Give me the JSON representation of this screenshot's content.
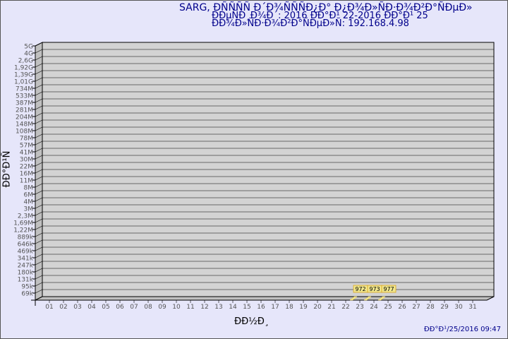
{
  "header": {
    "title": "SARG,  ÐÑÑÑÑ Ð´Ð¾ÑÑÑÐ¿Ð° Ð¿Ð¾Ð»ÑÐ·Ð¾Ð²Ð°ÑÐµÐ»",
    "period": "ÐÐµÑÐ¸Ð¾Ð´: 2016 ÐÐ°Ð¹ 22-2016 ÐÐ°Ð¹ 25",
    "user": "ÐÐ¾Ð»ÑÐ·Ð¾Ð²Ð°ÑÐµÐ»Ñ: 192.168.4.98"
  },
  "footer": {
    "generated": "ÐÐ°Ð¹/25/2016 09:47"
  },
  "colors": {
    "background": "#e6e6fa",
    "plot": "#d3d3d3",
    "bar": "#f0e68c",
    "text_title": "#00008b"
  },
  "chart_data": {
    "type": "bar",
    "xlabel": "ÐÐ½Ð¸",
    "ylabel": "ÐÐ°Ð¹Ñ",
    "y_scale": "log",
    "y_ticks": [
      "5G",
      "4G",
      "2,6G",
      "1,92G",
      "1,39G",
      "1,01G",
      "734M",
      "533M",
      "387M",
      "281M",
      "204M",
      "148M",
      "108M",
      "78M",
      "57M",
      "41M",
      "30M",
      "22M",
      "16M",
      "11M",
      "8M",
      "6M",
      "4M",
      "3M",
      "2,3M",
      "1,69M",
      "1,22M",
      "889k",
      "646k",
      "469k",
      "341k",
      "247k",
      "180k",
      "131k",
      "95k",
      "69k"
    ],
    "categories": [
      "01",
      "02",
      "03",
      "04",
      "05",
      "06",
      "07",
      "08",
      "09",
      "10",
      "11",
      "12",
      "13",
      "14",
      "15",
      "16",
      "17",
      "18",
      "19",
      "20",
      "21",
      "22",
      "23",
      "24",
      "25",
      "26",
      "27",
      "28",
      "29",
      "30",
      "31"
    ],
    "bars": [
      {
        "day": "23",
        "value": 972,
        "label": "972"
      },
      {
        "day": "24",
        "value": 973,
        "label": "973"
      },
      {
        "day": "25",
        "value": 977,
        "label": "977"
      }
    ],
    "grid": true
  }
}
